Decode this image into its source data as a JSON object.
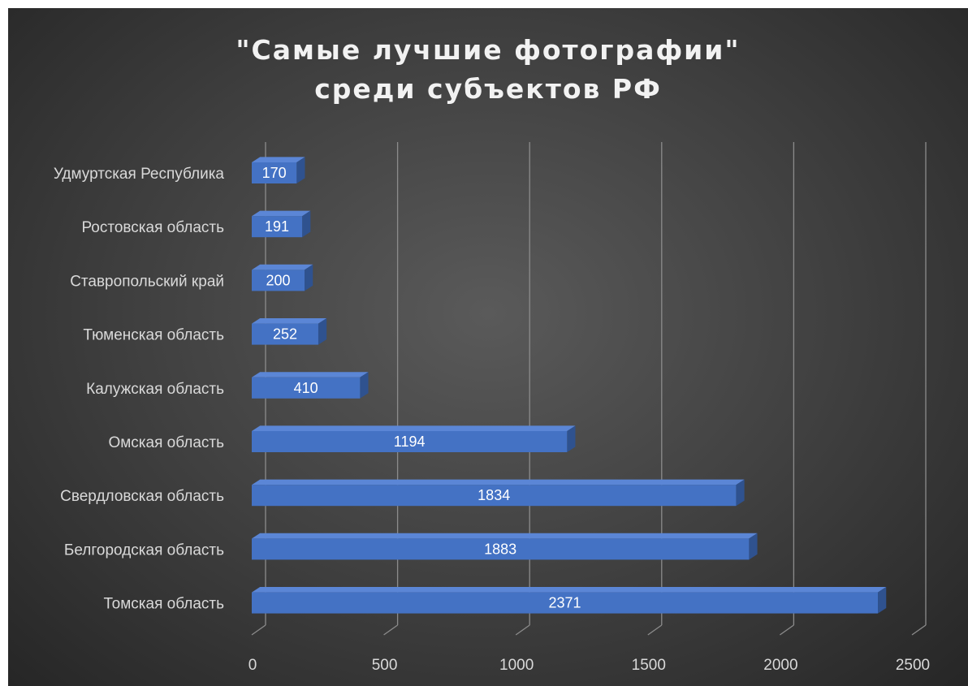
{
  "chart_data": {
    "type": "bar",
    "orientation": "horizontal",
    "title_lines": [
      "\"Самые лучшие фотографии\"",
      "среди субъектов РФ"
    ],
    "categories": [
      "Удмуртская Республика",
      "Ростовская область",
      "Ставропольский край",
      "Тюменская область",
      "Калужская область",
      "Омская область",
      "Свердловская область",
      "Белгородская область",
      "Томская область"
    ],
    "values": [
      170,
      191,
      200,
      252,
      410,
      1194,
      1834,
      1883,
      2371
    ],
    "xlim": [
      0,
      2500
    ],
    "x_ticks": [
      "0",
      "500",
      "1000",
      "1500",
      "2000",
      "2500"
    ],
    "grid": true,
    "legend": "none",
    "colors": {
      "bar_front": "#4472c4",
      "bar_top": "#5b86d6",
      "bar_side": "#2f528f",
      "grid": "#8c8c8c"
    }
  }
}
